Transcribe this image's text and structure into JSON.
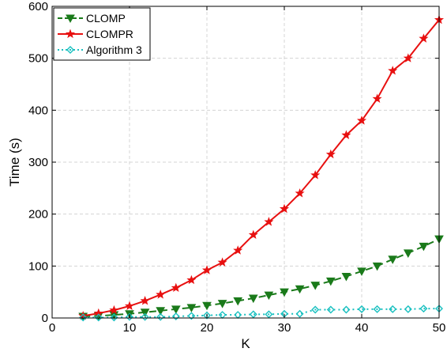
{
  "chart_data": {
    "type": "line",
    "xlabel": "K",
    "ylabel": "Time (s)",
    "xlim": [
      0,
      50
    ],
    "ylim": [
      0,
      600
    ],
    "xticks": [
      0,
      10,
      20,
      30,
      40,
      50
    ],
    "yticks": [
      0,
      100,
      200,
      300,
      400,
      500,
      600
    ],
    "grid": true,
    "legend_position": "top-left",
    "x": [
      4,
      6,
      8,
      10,
      12,
      14,
      16,
      18,
      20,
      22,
      24,
      26,
      28,
      30,
      32,
      34,
      36,
      38,
      40,
      42,
      44,
      46,
      48,
      50
    ],
    "series": [
      {
        "name": "CLOMP",
        "color": "#1a7a1a",
        "marker": "triangle-down",
        "dash": "dashed",
        "values": [
          3,
          4,
          6,
          8,
          11,
          14,
          17,
          20,
          24,
          28,
          33,
          38,
          44,
          50,
          56,
          63,
          71,
          80,
          90,
          100,
          113,
          125,
          138,
          152
        ]
      },
      {
        "name": "CLOMPR",
        "color": "#e81010",
        "marker": "star",
        "dash": "solid",
        "values": [
          4,
          9,
          15,
          23,
          33,
          45,
          58,
          73,
          92,
          107,
          130,
          160,
          185,
          210,
          240,
          275,
          315,
          352,
          380,
          422,
          476,
          500,
          538,
          574
        ]
      },
      {
        "name": "Algorithm 3",
        "color": "#19c0c0",
        "marker": "diamond",
        "dash": "dotted",
        "values": [
          1,
          1,
          1,
          2,
          2,
          2,
          3,
          4,
          5,
          6,
          6,
          7,
          7,
          8,
          8,
          16,
          16,
          16,
          17,
          17,
          17,
          17,
          18,
          18
        ]
      }
    ]
  }
}
